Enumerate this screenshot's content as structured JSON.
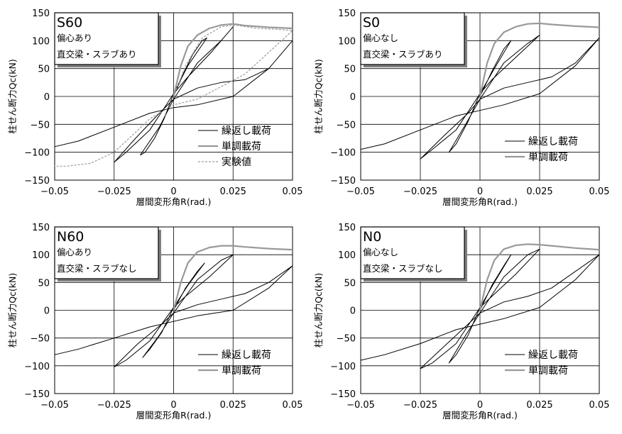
{
  "chart_data": [
    {
      "type": "line",
      "panel": "S60",
      "box": {
        "title": "S60",
        "line1": "偏心あり",
        "line2": "直交梁・スラブあり"
      },
      "xlabel": "層間変形角R(rad.)",
      "ylabel": "柱せん断力Qc(kN)",
      "xlim": [
        -0.05,
        0.05
      ],
      "ylim": [
        -150,
        150
      ],
      "xticks": [
        "-0.05",
        "-0.025",
        "0",
        "0.025",
        "0.05"
      ],
      "yticks": [
        "150",
        "100",
        "50",
        "0",
        "-50",
        "-100",
        "-150"
      ],
      "legend": [
        "繰返し載荷",
        "単調載荷",
        "実験値"
      ],
      "series": [
        {
          "name": "繰返し載荷",
          "color": "#000000",
          "style": "solid",
          "x": [
            0,
            0.004,
            0.008,
            0.012,
            0.014,
            0.006,
            0,
            -0.004,
            -0.008,
            -0.012,
            -0.014,
            -0.006,
            0,
            0.01,
            0.02,
            0.025,
            0.016,
            0.006,
            0,
            -0.01,
            -0.02,
            -0.025,
            -0.016,
            -0.006,
            0,
            0.01,
            0.02,
            0.03,
            0.04,
            0.05,
            0.04,
            0.025,
            0.01,
            0,
            -0.01,
            -0.025,
            -0.04,
            -0.05
          ],
          "y": [
            0,
            40,
            75,
            100,
            105,
            55,
            5,
            -40,
            -75,
            -100,
            -105,
            -55,
            -5,
            60,
            100,
            125,
            80,
            35,
            5,
            -60,
            -100,
            -118,
            -75,
            -30,
            -5,
            15,
            25,
            30,
            50,
            100,
            50,
            0,
            -15,
            -20,
            -30,
            -55,
            -80,
            -90
          ]
        },
        {
          "name": "単調載荷",
          "color": "#999999",
          "style": "solid",
          "x": [
            0,
            0.003,
            0.006,
            0.01,
            0.015,
            0.02,
            0.025,
            0.03,
            0.04,
            0.05
          ],
          "y": [
            0,
            55,
            90,
            110,
            122,
            128,
            130,
            127,
            124,
            122
          ]
        },
        {
          "name": "実験値",
          "color": "#999999",
          "style": "dashed",
          "x": [
            0,
            0.005,
            0.012,
            0.02,
            0.026,
            0.035,
            0.045,
            0.05,
            0.03,
            0.01,
            0,
            -0.01,
            -0.025,
            -0.035,
            -0.045,
            -0.05
          ],
          "y": [
            0,
            55,
            105,
            125,
            128,
            122,
            120,
            118,
            40,
            -5,
            -15,
            -40,
            -100,
            -120,
            -125,
            -125
          ]
        }
      ]
    },
    {
      "type": "line",
      "panel": "S0",
      "box": {
        "title": "S0",
        "line1": "偏心なし",
        "line2": "直交梁・スラブあり"
      },
      "xlabel": "層間変形角R(rad.)",
      "ylabel": "柱せん断力Qc(kN)",
      "xlim": [
        -0.05,
        0.05
      ],
      "ylim": [
        -150,
        150
      ],
      "xticks": [
        "-0.05",
        "-0.025",
        "0",
        "0.025",
        "0.05"
      ],
      "yticks": [
        "150",
        "100",
        "50",
        "0",
        "-50",
        "-100",
        "-150"
      ],
      "legend": [
        "繰返し載荷",
        "単調載荷"
      ],
      "series": [
        {
          "name": "繰返し載荷",
          "color": "#000000",
          "style": "solid",
          "x": [
            0,
            0.005,
            0.01,
            0.013,
            0.006,
            0,
            -0.005,
            -0.01,
            -0.013,
            -0.006,
            0,
            0.01,
            0.02,
            0.025,
            0.015,
            0.005,
            0,
            -0.01,
            -0.02,
            -0.025,
            -0.015,
            -0.005,
            0,
            0.01,
            0.02,
            0.03,
            0.04,
            0.05,
            0.04,
            0.025,
            0.01,
            0,
            -0.01,
            -0.025,
            -0.04,
            -0.05
          ],
          "y": [
            0,
            45,
            85,
            100,
            50,
            5,
            -45,
            -85,
            -100,
            -50,
            -5,
            60,
            95,
            110,
            70,
            30,
            5,
            -60,
            -95,
            -112,
            -70,
            -30,
            -5,
            15,
            25,
            35,
            60,
            105,
            55,
            5,
            -15,
            -25,
            -35,
            -60,
            -85,
            -95
          ]
        },
        {
          "name": "単調載荷",
          "color": "#999999",
          "style": "solid",
          "x": [
            0,
            0.003,
            0.006,
            0.01,
            0.015,
            0.02,
            0.025,
            0.03,
            0.04,
            0.05
          ],
          "y": [
            0,
            60,
            95,
            115,
            125,
            130,
            131,
            129,
            126,
            124
          ]
        }
      ]
    },
    {
      "type": "line",
      "panel": "N60",
      "box": {
        "title": "N60",
        "line1": "偏心あり",
        "line2": "直交梁・スラブなし"
      },
      "xlabel": "層間変形角R(rad.)",
      "ylabel": "柱せん断力Qc(kN)",
      "xlim": [
        -0.05,
        0.05
      ],
      "ylim": [
        -150,
        150
      ],
      "xticks": [
        "-0.05",
        "-0.025",
        "0",
        "0.025",
        "0.05"
      ],
      "yticks": [
        "150",
        "100",
        "50",
        "0",
        "-50",
        "-100",
        "-150"
      ],
      "legend": [
        "繰返し載荷",
        "単調載荷"
      ],
      "series": [
        {
          "name": "繰返し載荷",
          "color": "#000000",
          "style": "solid",
          "x": [
            0,
            0.005,
            0.01,
            0.013,
            0.006,
            0,
            -0.005,
            -0.01,
            -0.013,
            -0.006,
            0,
            0.01,
            0.02,
            0.025,
            0.015,
            0.005,
            0,
            -0.01,
            -0.02,
            -0.025,
            -0.015,
            -0.005,
            0,
            0.01,
            0.02,
            0.03,
            0.04,
            0.05,
            0.04,
            0.025,
            0.01,
            0,
            -0.01,
            -0.025,
            -0.04,
            -0.05
          ],
          "y": [
            0,
            40,
            70,
            85,
            45,
            5,
            -40,
            -70,
            -85,
            -45,
            -5,
            55,
            90,
            100,
            60,
            25,
            5,
            -55,
            -90,
            -102,
            -60,
            -25,
            -5,
            10,
            20,
            30,
            50,
            80,
            40,
            0,
            -10,
            -20,
            -30,
            -50,
            -70,
            -80
          ]
        },
        {
          "name": "単調載荷",
          "color": "#999999",
          "style": "solid",
          "x": [
            0,
            0.003,
            0.006,
            0.01,
            0.015,
            0.02,
            0.025,
            0.03,
            0.04,
            0.05
          ],
          "y": [
            0,
            50,
            85,
            105,
            113,
            116,
            116,
            114,
            111,
            109
          ]
        }
      ]
    },
    {
      "type": "line",
      "panel": "N0",
      "box": {
        "title": "N0",
        "line1": "偏心なし",
        "line2": "直交梁・スラブなし"
      },
      "xlabel": "層間変形角R(rad.)",
      "ylabel": "柱せん断力Qc(kN)",
      "xlim": [
        -0.05,
        0.05
      ],
      "ylim": [
        -150,
        150
      ],
      "xticks": [
        "-0.05",
        "-0.025",
        "0",
        "0.025",
        "0.05"
      ],
      "yticks": [
        "150",
        "100",
        "50",
        "0",
        "-50",
        "-100",
        "-150"
      ],
      "legend": [
        "繰返し載荷",
        "単調載荷"
      ],
      "series": [
        {
          "name": "繰返し載荷",
          "color": "#000000",
          "style": "solid",
          "x": [
            0,
            0.005,
            0.01,
            0.013,
            0.006,
            0,
            -0.005,
            -0.01,
            -0.013,
            -0.006,
            0,
            0.01,
            0.02,
            0.025,
            0.015,
            0.005,
            0,
            -0.01,
            -0.02,
            -0.025,
            -0.015,
            -0.005,
            0,
            0.01,
            0.02,
            0.03,
            0.04,
            0.05,
            0.04,
            0.025,
            0.01,
            0,
            -0.01,
            -0.025,
            -0.04,
            -0.05
          ],
          "y": [
            0,
            45,
            80,
            100,
            50,
            5,
            -45,
            -80,
            -95,
            -45,
            -5,
            60,
            100,
            110,
            65,
            25,
            5,
            -60,
            -95,
            -105,
            -65,
            -25,
            -5,
            15,
            25,
            40,
            70,
            100,
            55,
            5,
            -15,
            -25,
            -35,
            -60,
            -80,
            -90
          ]
        },
        {
          "name": "単調載荷",
          "color": "#999999",
          "style": "solid",
          "x": [
            0,
            0.003,
            0.006,
            0.01,
            0.015,
            0.02,
            0.025,
            0.03,
            0.04,
            0.05
          ],
          "y": [
            0,
            55,
            90,
            110,
            117,
            119,
            118,
            116,
            112,
            109
          ]
        }
      ]
    }
  ]
}
